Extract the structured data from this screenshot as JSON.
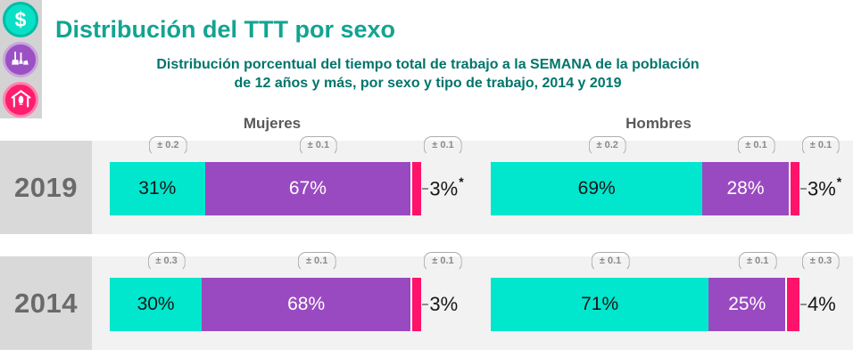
{
  "header": {
    "title": "Distribución del TTT por sexo",
    "subtitle_line1": "Distribución porcentual del tiempo total de trabajo a la SEMANA de la población",
    "subtitle_line2": "de 12 años y más, por sexo y tipo de trabajo, 2014 y 2019"
  },
  "sidebar": {
    "icons": [
      {
        "name": "money-icon",
        "glyph": "$",
        "color": "#0ae0c6"
      },
      {
        "name": "cleaning-tools-icon",
        "color": "#9b51c3"
      },
      {
        "name": "house-corn-icon",
        "color": "#ff1e6e"
      }
    ]
  },
  "columns": {
    "left": "Mujeres",
    "right": "Hombres"
  },
  "colors": {
    "teal_bar": "#00e7cd",
    "purple_bar": "#9a4ac1",
    "pink_bar": "#ff1269",
    "title_teal": "#12a492",
    "subtitle_teal": "#00756b"
  },
  "chart_data": {
    "type": "bar",
    "subtype": "horizontal-stacked",
    "unit": "percent of total work time per week",
    "title": "Distribución del TTT por sexo",
    "subtitle": "Distribución porcentual del tiempo total de trabajo a la SEMANA de la población de 12 años y más, por sexo y tipo de trabajo, 2014 y 2019",
    "legend_colors": [
      "#00e7cd",
      "#9a4ac1",
      "#ff1269"
    ],
    "rows": [
      {
        "year": "2019",
        "groups": [
          {
            "name": "Mujeres",
            "segments": [
              {
                "value": 31,
                "label": "31%",
                "moe": "± 0.2",
                "footnote": ""
              },
              {
                "value": 67,
                "label": "67%",
                "moe": "± 0.1",
                "footnote": ""
              },
              {
                "value": 3,
                "label": "3%",
                "moe": "± 0.1",
                "footnote": "*"
              }
            ]
          },
          {
            "name": "Hombres",
            "segments": [
              {
                "value": 69,
                "label": "69%",
                "moe": "± 0.2",
                "footnote": ""
              },
              {
                "value": 28,
                "label": "28%",
                "moe": "± 0.1",
                "footnote": ""
              },
              {
                "value": 3,
                "label": "3%",
                "moe": "± 0.1",
                "footnote": "*"
              }
            ]
          }
        ]
      },
      {
        "year": "2014",
        "groups": [
          {
            "name": "Mujeres",
            "segments": [
              {
                "value": 30,
                "label": "30%",
                "moe": "± 0.3",
                "footnote": ""
              },
              {
                "value": 68,
                "label": "68%",
                "moe": "± 0.1",
                "footnote": ""
              },
              {
                "value": 3,
                "label": "3%",
                "moe": "± 0.1",
                "footnote": ""
              }
            ]
          },
          {
            "name": "Hombres",
            "segments": [
              {
                "value": 71,
                "label": "71%",
                "moe": "± 0.1",
                "footnote": ""
              },
              {
                "value": 25,
                "label": "25%",
                "moe": "± 0.1",
                "footnote": ""
              },
              {
                "value": 4,
                "label": "4%",
                "moe": "± 0.3",
                "footnote": ""
              }
            ]
          }
        ]
      }
    ]
  }
}
